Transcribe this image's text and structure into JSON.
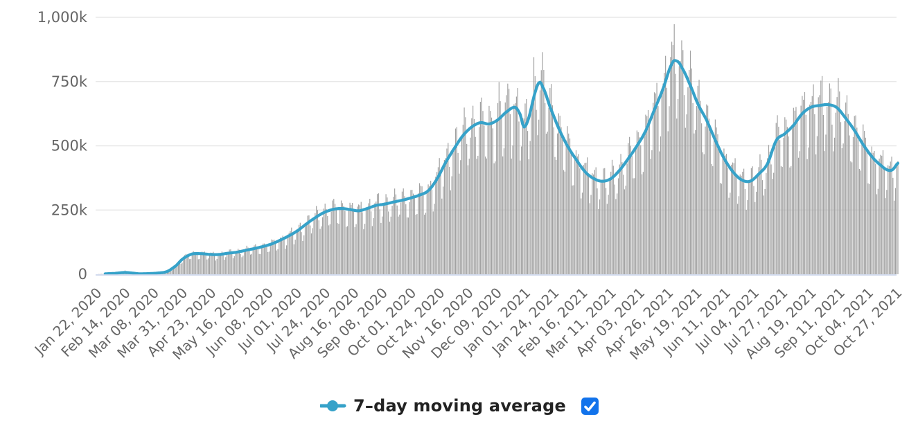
{
  "chart_data": {
    "type": "bar+line combo (daily columns with 7-day moving average line)",
    "y_axis": {
      "tick_labels": [
        "0",
        "250k",
        "500k",
        "750k",
        "1,000k"
      ],
      "tick_values_thousands": [
        0,
        250,
        500,
        750,
        1000
      ],
      "max_thousands": 1000,
      "gridlines": "horizontal, light gray"
    },
    "x_axis": {
      "tick_labels": [
        "Jan 22, 2020",
        "Feb 14, 2020",
        "Mar 08, 2020",
        "Mar 31, 2020",
        "Apr 23, 2020",
        "May 16, 2020",
        "Jun 08, 2020",
        "Jul 01, 2020",
        "Jul 24, 2020",
        "Aug 16, 2020",
        "Sep 08, 2020",
        "Oct 01, 2020",
        "Oct 24, 2020",
        "Nov 16, 2020",
        "Dec 09, 2020",
        "Jan 01, 2021",
        "Jan 24, 2021",
        "Feb 16, 2021",
        "Mar 11, 2021",
        "Apr 03, 2021",
        "Apr 26, 2021",
        "May 19, 2021",
        "Jun 11, 2021",
        "Jul 04, 2021",
        "Jul 27, 2021",
        "Aug 19, 2021",
        "Sep 11, 2021",
        "Oct 04, 2021",
        "Oct 27, 2021"
      ],
      "days_between_ticks": 23,
      "label_rotation_degrees": -45
    },
    "legend": {
      "label": "7–day moving average",
      "checkbox_checked": true,
      "position": "bottom-center"
    },
    "moving_average_series": {
      "units": "thousands (k)",
      "x_units": "days since Jan 22, 2020",
      "points_day_value": [
        [
          0,
          0.6
        ],
        [
          7,
          2
        ],
        [
          14,
          3.5
        ],
        [
          20,
          6.5
        ],
        [
          24,
          6.5
        ],
        [
          28,
          4.5
        ],
        [
          33,
          2
        ],
        [
          38,
          2.2
        ],
        [
          42,
          2.8
        ],
        [
          49,
          5
        ],
        [
          56,
          11
        ],
        [
          63,
          33
        ],
        [
          68,
          58
        ],
        [
          73,
          73
        ],
        [
          77,
          80
        ],
        [
          84,
          80
        ],
        [
          91,
          77
        ],
        [
          98,
          77
        ],
        [
          105,
          82
        ],
        [
          112,
          86
        ],
        [
          119,
          93
        ],
        [
          126,
          100
        ],
        [
          133,
          108
        ],
        [
          140,
          118
        ],
        [
          147,
          133
        ],
        [
          154,
          150
        ],
        [
          161,
          170
        ],
        [
          168,
          196
        ],
        [
          175,
          220
        ],
        [
          182,
          240
        ],
        [
          189,
          252
        ],
        [
          196,
          256
        ],
        [
          203,
          252
        ],
        [
          210,
          247
        ],
        [
          217,
          256
        ],
        [
          224,
          268
        ],
        [
          231,
          273
        ],
        [
          238,
          281
        ],
        [
          245,
          288
        ],
        [
          252,
          297
        ],
        [
          259,
          308
        ],
        [
          266,
          325
        ],
        [
          273,
          370
        ],
        [
          280,
          435
        ],
        [
          287,
          490
        ],
        [
          294,
          540
        ],
        [
          301,
          573
        ],
        [
          308,
          590
        ],
        [
          315,
          585
        ],
        [
          322,
          601
        ],
        [
          329,
          632
        ],
        [
          336,
          650
        ],
        [
          340,
          622
        ],
        [
          343,
          573
        ],
        [
          347,
          610
        ],
        [
          351,
          690
        ],
        [
          355,
          745
        ],
        [
          358,
          730
        ],
        [
          364,
          652
        ],
        [
          371,
          568
        ],
        [
          378,
          500
        ],
        [
          385,
          447
        ],
        [
          392,
          400
        ],
        [
          399,
          373
        ],
        [
          406,
          362
        ],
        [
          413,
          372
        ],
        [
          420,
          405
        ],
        [
          427,
          450
        ],
        [
          434,
          500
        ],
        [
          441,
          558
        ],
        [
          448,
          640
        ],
        [
          455,
          722
        ],
        [
          462,
          818
        ],
        [
          466,
          830
        ],
        [
          470,
          805
        ],
        [
          476,
          745
        ],
        [
          483,
          663
        ],
        [
          490,
          600
        ],
        [
          497,
          522
        ],
        [
          504,
          452
        ],
        [
          511,
          400
        ],
        [
          518,
          368
        ],
        [
          525,
          362
        ],
        [
          532,
          390
        ],
        [
          539,
          430
        ],
        [
          546,
          520
        ],
        [
          553,
          547
        ],
        [
          560,
          580
        ],
        [
          567,
          625
        ],
        [
          574,
          650
        ],
        [
          581,
          657
        ],
        [
          588,
          660
        ],
        [
          595,
          648
        ],
        [
          602,
          607
        ],
        [
          609,
          560
        ],
        [
          616,
          505
        ],
        [
          623,
          458
        ],
        [
          630,
          425
        ],
        [
          636,
          405
        ],
        [
          640,
          408
        ],
        [
          644,
          432
        ]
      ],
      "line_starts_at_day": 6
    },
    "daily_bars_series": {
      "description": "daily values oscillating weekly around the moving average",
      "days_total": 645,
      "weekday_factors_sun_to_sat": [
        0.74,
        0.79,
        1.0,
        1.08,
        1.12,
        1.1,
        0.95
      ],
      "first_day_weekday_index": 3,
      "spike_overrides_day_value": [
        [
          22,
          15
        ],
        [
          323,
          748
        ],
        [
          330,
          742
        ],
        [
          351,
          845
        ],
        [
          462,
          905
        ],
        [
          463,
          892
        ]
      ]
    },
    "colors": {
      "bar": "#a2a2a2",
      "line": "#36a2c9",
      "grid": "#e8e8e8",
      "axis_line": "#ccd6eb",
      "tick_text": "#666666",
      "legend_text": "#222222",
      "checkbox_blue": "#1273eb",
      "checkbox_check": "#ffffff"
    }
  },
  "legend": {
    "label": "7–day moving average"
  }
}
